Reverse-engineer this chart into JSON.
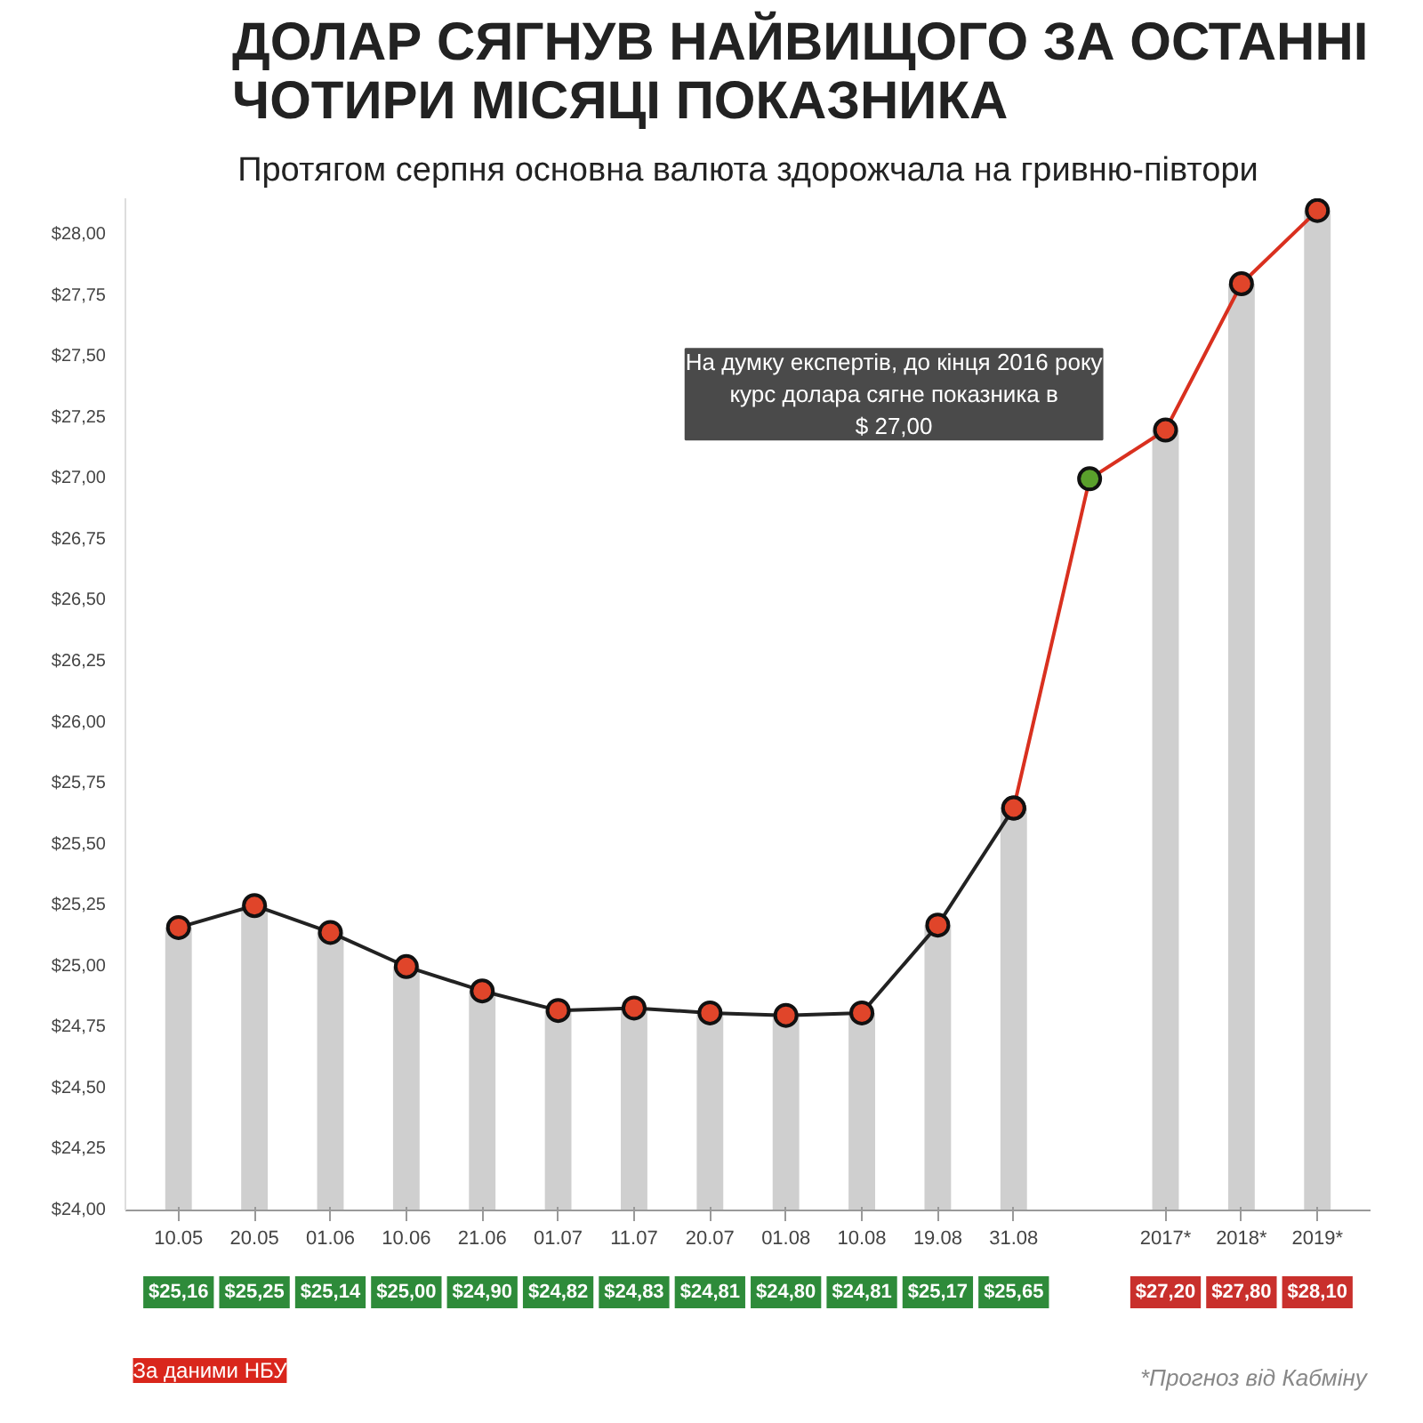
{
  "chart_data": {
    "type": "line",
    "title": "ДОЛАР СЯГНУВ НАЙВИЩОГО ЗА ОСТАННІ\nЧОТИРИ МІСЯЦІ ПОКАЗНИКА",
    "subtitle": "Протягом серпня основна валюта здорожчала на гривню-півтори",
    "categories": [
      "10.05",
      "20.05",
      "01.06",
      "10.06",
      "21.06",
      "01.07",
      "11.07",
      "20.07",
      "01.08",
      "10.08",
      "19.08",
      "31.08",
      null,
      "2017*",
      "2018*",
      "2019*"
    ],
    "series": [
      {
        "type": "bar",
        "color": "#cfcfcf",
        "values": [
          25.16,
          25.25,
          25.14,
          25.0,
          24.9,
          24.82,
          24.83,
          24.81,
          24.8,
          24.81,
          25.17,
          25.65,
          null,
          27.2,
          27.8,
          28.1
        ],
        "value_labels": [
          "$25,16",
          "$25,25",
          "$25,14",
          "$25,00",
          "$24,90",
          "$24,82",
          "$24,83",
          "$24,81",
          "$24,80",
          "$24,81",
          "$25,17",
          "$25,65",
          null,
          "$27,20",
          "$27,80",
          "$28,10"
        ]
      },
      {
        "color": "#222222",
        "values": [
          25.16,
          25.25,
          25.14,
          25.0,
          24.9,
          24.82,
          24.83,
          24.81,
          24.8,
          24.81,
          25.17,
          25.65,
          null,
          null,
          null,
          null
        ]
      },
      {
        "color": "#d9301f",
        "values": [
          null,
          null,
          null,
          null,
          null,
          null,
          null,
          null,
          null,
          null,
          null,
          25.65,
          27.0,
          27.2,
          27.8,
          28.1
        ]
      },
      {
        "type": "scatter",
        "color": "#5aa02c",
        "values": [
          null,
          null,
          null,
          null,
          null,
          null,
          null,
          null,
          null,
          null,
          null,
          null,
          27.0,
          null,
          null,
          null
        ]
      }
    ],
    "ylim": [
      24.0,
      28.15
    ],
    "yticks": [
      {
        "value": 24.0,
        "label": "$24,00"
      },
      {
        "value": 24.25,
        "label": "$24,25"
      },
      {
        "value": 24.5,
        "label": "$24,50"
      },
      {
        "value": 24.75,
        "label": "$24,75"
      },
      {
        "value": 25.0,
        "label": "$25,00"
      },
      {
        "value": 25.25,
        "label": "$25,25"
      },
      {
        "value": 25.5,
        "label": "$25,50"
      },
      {
        "value": 25.75,
        "label": "$25,75"
      },
      {
        "value": 26.0,
        "label": "$26,00"
      },
      {
        "value": 26.25,
        "label": "$26,25"
      },
      {
        "value": 26.5,
        "label": "$26,50"
      },
      {
        "value": 26.75,
        "label": "$26,75"
      },
      {
        "value": 27.0,
        "label": "$27,00"
      },
      {
        "value": 27.25,
        "label": "$27,25"
      },
      {
        "value": 27.5,
        "label": "$27,50"
      },
      {
        "value": 27.75,
        "label": "$27,75"
      },
      {
        "value": 28.0,
        "label": "$28,00"
      }
    ],
    "marker": "circle",
    "grid": false,
    "annotations": [
      "На думку експертів, до кінця 2016 року\nкурс долара сягне показника в\n$ 27,00",
      "За даними НБУ",
      "*Прогноз від Кабміну"
    ]
  }
}
